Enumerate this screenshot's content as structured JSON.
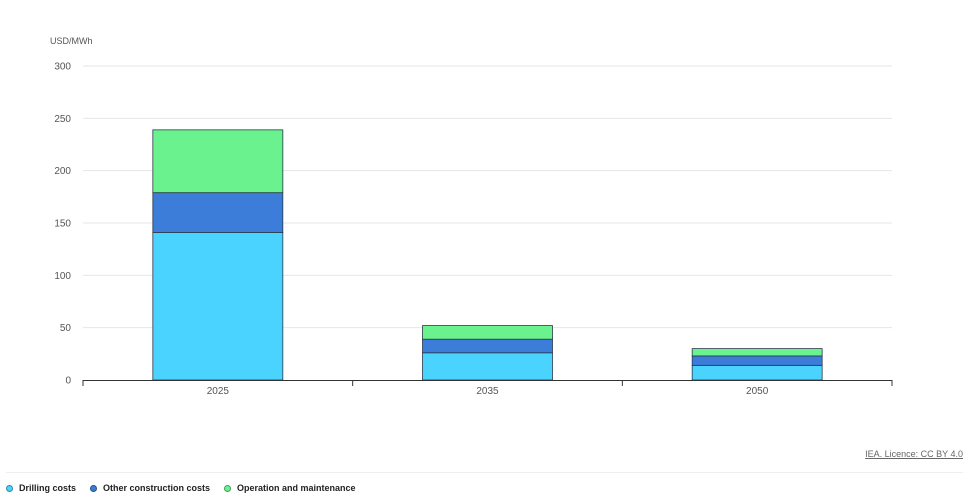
{
  "chart_data": {
    "type": "bar",
    "stacked": true,
    "ylabel": "USD/MWh",
    "ylim": [
      0,
      300
    ],
    "yticks": [
      0,
      50,
      100,
      150,
      200,
      250,
      300
    ],
    "categories": [
      "2025",
      "2035",
      "2050"
    ],
    "series": [
      {
        "name": "Drilling costs",
        "color": "#4ad3ff",
        "values": [
          141,
          26,
          14
        ]
      },
      {
        "name": "Other construction costs",
        "color": "#3b7dd8",
        "values": [
          38,
          13,
          9
        ]
      },
      {
        "name": "Operation and maintenance",
        "color": "#6af28e",
        "values": [
          60,
          13,
          7
        ]
      }
    ],
    "grid": true,
    "legend_position": "bottom-left"
  },
  "credit": "IEA. Licence: CC BY 4.0"
}
